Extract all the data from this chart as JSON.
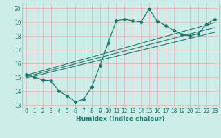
{
  "title": "",
  "xlabel": "Humidex (Indice chaleur)",
  "x_data": [
    0,
    1,
    2,
    3,
    4,
    5,
    6,
    7,
    8,
    9,
    10,
    11,
    12,
    13,
    14,
    15,
    16,
    17,
    18,
    19,
    20,
    21,
    22,
    23
  ],
  "y_data": [
    15.2,
    15.0,
    14.8,
    14.75,
    14.0,
    13.65,
    13.2,
    13.4,
    14.3,
    15.85,
    17.5,
    19.1,
    19.2,
    19.1,
    19.0,
    19.95,
    19.05,
    18.75,
    18.4,
    18.1,
    18.0,
    18.15,
    18.85,
    19.2
  ],
  "reg_lines": [
    {
      "x": [
        0,
        23
      ],
      "y": [
        15.15,
        18.95
      ]
    },
    {
      "x": [
        0,
        23
      ],
      "y": [
        15.05,
        18.6
      ]
    },
    {
      "x": [
        0,
        23
      ],
      "y": [
        14.95,
        18.25
      ]
    }
  ],
  "line_color": "#1a7a6e",
  "bg_color": "#cdeee8",
  "grid_major_color": "#f0c8c8",
  "grid_minor_color": "#cde8e4",
  "ylim": [
    12.8,
    20.4
  ],
  "xlim": [
    -0.5,
    23.5
  ],
  "yticks": [
    13,
    14,
    15,
    16,
    17,
    18,
    19,
    20
  ],
  "xticks": [
    0,
    1,
    2,
    3,
    4,
    5,
    6,
    7,
    8,
    9,
    10,
    11,
    12,
    13,
    14,
    15,
    16,
    17,
    18,
    19,
    20,
    21,
    22,
    23
  ],
  "tick_fontsize": 5.5,
  "xlabel_fontsize": 6.5
}
